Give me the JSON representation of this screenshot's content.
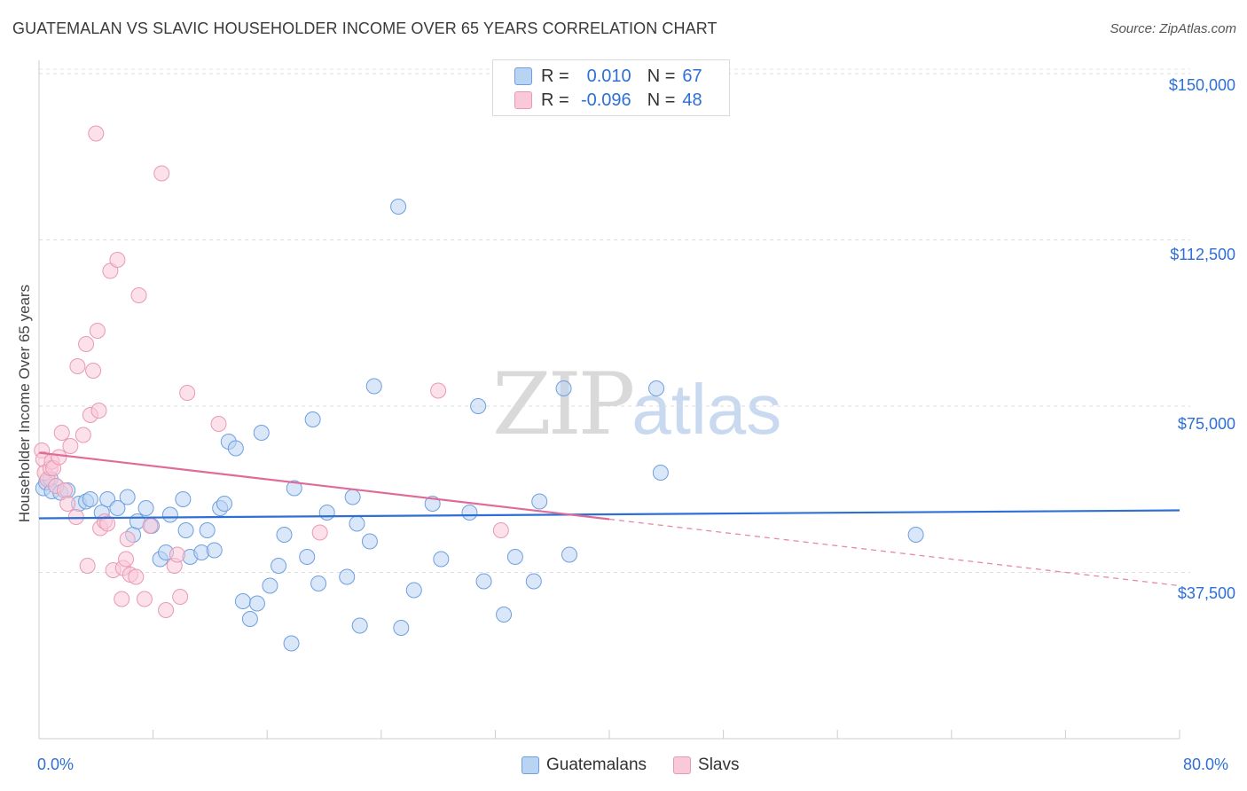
{
  "title": "GUATEMALAN VS SLAVIC HOUSEHOLDER INCOME OVER 65 YEARS CORRELATION CHART",
  "source": "Source: ZipAtlas.com",
  "watermark": {
    "zip": "ZIP",
    "atlas": "atlas"
  },
  "legend_top": {
    "rows": [
      {
        "r_label": "R =",
        "r_value": "0.010",
        "n_label": "N =",
        "n_value": "67",
        "color": "#6f9fe0"
      },
      {
        "r_label": "R =",
        "r_value": "-0.096",
        "n_label": "N =",
        "n_value": "48",
        "color": "#e89ab4"
      }
    ]
  },
  "chart_data": {
    "type": "scatter",
    "title": "GUATEMALAN VS SLAVIC HOUSEHOLDER INCOME OVER 65 YEARS CORRELATION CHART",
    "xlabel": "",
    "ylabel": "Householder Income Over 65 years",
    "xlim": [
      0,
      80
    ],
    "ylim": [
      0,
      155000
    ],
    "x_tick_labels": [
      "0.0%",
      "80.0%"
    ],
    "y_ticks": [
      37500,
      75000,
      112500,
      150000
    ],
    "y_tick_labels": [
      "$37,500",
      "$75,000",
      "$112,500",
      "$150,000"
    ],
    "grid": true,
    "legend_placement": "bottom-center",
    "series": [
      {
        "name": "Guatemalans",
        "color": "#6f9fe0",
        "fill": "#b9d3f2",
        "R": 0.01,
        "N": 67,
        "trend": {
          "x": [
            0,
            80
          ],
          "y": [
            49700,
            51500
          ],
          "style": "solid",
          "color": "#2e6fd6"
        },
        "points": [
          [
            0.3,
            56500
          ],
          [
            0.5,
            57800
          ],
          [
            0.8,
            58600
          ],
          [
            0.9,
            55800
          ],
          [
            1.2,
            57000
          ],
          [
            1.5,
            55500
          ],
          [
            2.0,
            56000
          ],
          [
            2.8,
            53000
          ],
          [
            3.3,
            53500
          ],
          [
            3.6,
            54000
          ],
          [
            4.4,
            51000
          ],
          [
            4.8,
            54000
          ],
          [
            5.5,
            52000
          ],
          [
            6.2,
            54500
          ],
          [
            6.6,
            46000
          ],
          [
            6.9,
            49000
          ],
          [
            7.5,
            52000
          ],
          [
            7.9,
            48000
          ],
          [
            8.5,
            40500
          ],
          [
            8.9,
            42000
          ],
          [
            9.2,
            50500
          ],
          [
            10.3,
            47000
          ],
          [
            10.1,
            54000
          ],
          [
            10.6,
            41000
          ],
          [
            11.4,
            42000
          ],
          [
            11.8,
            47000
          ],
          [
            12.3,
            42500
          ],
          [
            12.7,
            52000
          ],
          [
            13.0,
            53000
          ],
          [
            13.3,
            67000
          ],
          [
            13.8,
            65500
          ],
          [
            14.3,
            31000
          ],
          [
            14.8,
            27000
          ],
          [
            15.3,
            30500
          ],
          [
            15.6,
            69000
          ],
          [
            16.2,
            34500
          ],
          [
            16.8,
            39000
          ],
          [
            17.2,
            46000
          ],
          [
            17.7,
            21500
          ],
          [
            17.9,
            56500
          ],
          [
            18.8,
            41000
          ],
          [
            19.2,
            72000
          ],
          [
            19.6,
            35000
          ],
          [
            20.2,
            51000
          ],
          [
            21.6,
            36500
          ],
          [
            22.0,
            54500
          ],
          [
            22.3,
            48500
          ],
          [
            22.5,
            25500
          ],
          [
            23.2,
            44500
          ],
          [
            23.5,
            79500
          ],
          [
            25.2,
            120000
          ],
          [
            25.4,
            25000
          ],
          [
            26.3,
            33500
          ],
          [
            27.6,
            53000
          ],
          [
            28.2,
            40500
          ],
          [
            30.2,
            51000
          ],
          [
            30.8,
            75000
          ],
          [
            31.2,
            35500
          ],
          [
            32.6,
            28000
          ],
          [
            33.4,
            41000
          ],
          [
            34.7,
            35500
          ],
          [
            35.1,
            53500
          ],
          [
            36.8,
            79000
          ],
          [
            37.2,
            41500
          ],
          [
            43.3,
            79000
          ],
          [
            43.6,
            60000
          ],
          [
            61.5,
            46000
          ]
        ]
      },
      {
        "name": "Slavs",
        "color": "#e89ab4",
        "fill": "#f9c9d9",
        "R": -0.096,
        "N": 48,
        "trend": {
          "x": [
            0,
            40
          ],
          "y": [
            64500,
            49500
          ],
          "style": "solid",
          "color": "#e06a98",
          "extension": {
            "x": [
              40,
              80
            ],
            "y": [
              49500,
              34500
            ],
            "style": "dashed"
          }
        },
        "points": [
          [
            0.2,
            65000
          ],
          [
            0.3,
            63000
          ],
          [
            0.4,
            60000
          ],
          [
            0.6,
            58500
          ],
          [
            0.8,
            61000
          ],
          [
            0.9,
            62500
          ],
          [
            1.0,
            61000
          ],
          [
            1.2,
            57000
          ],
          [
            1.4,
            63500
          ],
          [
            1.6,
            69000
          ],
          [
            1.8,
            56000
          ],
          [
            2.0,
            53000
          ],
          [
            2.2,
            66000
          ],
          [
            2.6,
            50000
          ],
          [
            2.7,
            84000
          ],
          [
            3.1,
            68500
          ],
          [
            3.3,
            89000
          ],
          [
            3.4,
            39000
          ],
          [
            3.6,
            73000
          ],
          [
            3.8,
            83000
          ],
          [
            4.0,
            136500
          ],
          [
            4.2,
            74000
          ],
          [
            4.3,
            47500
          ],
          [
            4.6,
            49000
          ],
          [
            4.8,
            48500
          ],
          [
            5.0,
            105500
          ],
          [
            5.2,
            38000
          ],
          [
            5.5,
            108000
          ],
          [
            5.8,
            31500
          ],
          [
            5.9,
            38500
          ],
          [
            6.1,
            40500
          ],
          [
            6.2,
            45000
          ],
          [
            6.4,
            37000
          ],
          [
            6.8,
            36500
          ],
          [
            7.0,
            100000
          ],
          [
            7.4,
            31500
          ],
          [
            7.8,
            48000
          ],
          [
            8.6,
            127500
          ],
          [
            8.9,
            29000
          ],
          [
            9.5,
            39000
          ],
          [
            9.7,
            41500
          ],
          [
            9.9,
            32000
          ],
          [
            10.4,
            78000
          ],
          [
            12.6,
            71000
          ],
          [
            19.7,
            46500
          ],
          [
            28.0,
            78500
          ],
          [
            32.4,
            47000
          ],
          [
            4.1,
            92000
          ]
        ]
      }
    ]
  },
  "bottom_legend": [
    "Guatemalans",
    "Slavs"
  ]
}
